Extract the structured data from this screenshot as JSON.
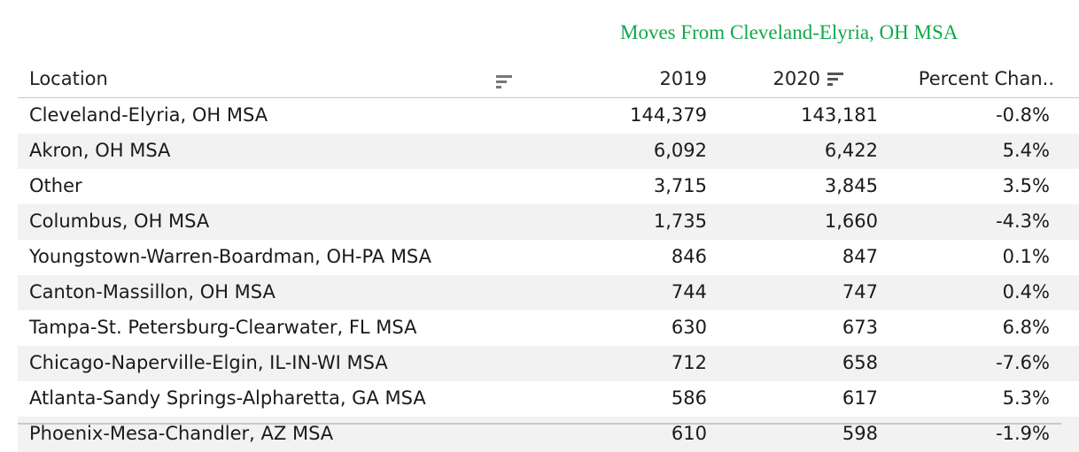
{
  "title": "Moves From Cleveland-Elyria, OH MSA",
  "columns": {
    "location": "Location",
    "y2019": "2019",
    "y2020": "2020",
    "pct": "Percent Chan.."
  },
  "rows": [
    {
      "location": "Cleveland-Elyria, OH MSA",
      "y2019": "144,379",
      "y2020": "143,181",
      "pct": "-0.8%"
    },
    {
      "location": "Akron, OH MSA",
      "y2019": "6,092",
      "y2020": "6,422",
      "pct": "5.4%"
    },
    {
      "location": "Other",
      "y2019": "3,715",
      "y2020": "3,845",
      "pct": "3.5%"
    },
    {
      "location": "Columbus, OH MSA",
      "y2019": "1,735",
      "y2020": "1,660",
      "pct": "-4.3%"
    },
    {
      "location": "Youngstown-Warren-Boardman, OH-PA MSA",
      "y2019": "846",
      "y2020": "847",
      "pct": "0.1%"
    },
    {
      "location": "Canton-Massillon, OH MSA",
      "y2019": "744",
      "y2020": "747",
      "pct": "0.4%"
    },
    {
      "location": "Tampa-St. Petersburg-Clearwater, FL MSA",
      "y2019": "630",
      "y2020": "673",
      "pct": "6.8%"
    },
    {
      "location": "Chicago-Naperville-Elgin, IL-IN-WI MSA",
      "y2019": "712",
      "y2020": "658",
      "pct": "-7.6%"
    },
    {
      "location": "Atlanta-Sandy Springs-Alpharetta, GA MSA",
      "y2019": "586",
      "y2020": "617",
      "pct": "5.3%"
    },
    {
      "location": "Phoenix-Mesa-Chandler, AZ MSA",
      "y2019": "610",
      "y2020": "598",
      "pct": "-1.9%"
    }
  ],
  "icons": {
    "location_sort": "sort-icon",
    "y2020_sort": "sort-descending-icon"
  },
  "colors": {
    "title": "#10a84a",
    "alt_row": "#f2f2f2",
    "rule": "#c9c9c9"
  }
}
